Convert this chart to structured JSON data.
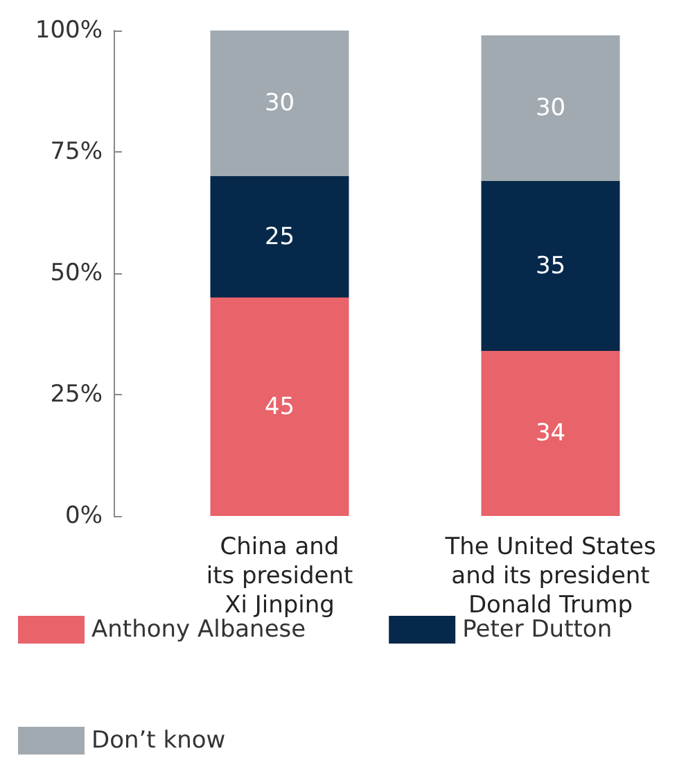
{
  "chart_data": {
    "type": "bar",
    "stacked": true,
    "categories": [
      "China and\nits president\nXi Jinping",
      "The United States\nand its president\nDonald Trump"
    ],
    "series": [
      {
        "name": "Anthony Albanese",
        "color": "#e8636a",
        "values": [
          45,
          34
        ]
      },
      {
        "name": "Peter Dutton",
        "color": "#06284a",
        "values": [
          25,
          35
        ]
      },
      {
        "name": "Don’t know",
        "color": "#a1aab0",
        "values": [
          30,
          30
        ]
      }
    ],
    "ylim": [
      0,
      100
    ],
    "yticks": [
      {
        "value": 0,
        "label": "0%"
      },
      {
        "value": 25,
        "label": "25%"
      },
      {
        "value": 50,
        "label": "50%"
      },
      {
        "value": 75,
        "label": "75%"
      },
      {
        "value": 100,
        "label": "100%"
      }
    ],
    "data_labels": true,
    "grid": false,
    "legend": "bottom"
  }
}
